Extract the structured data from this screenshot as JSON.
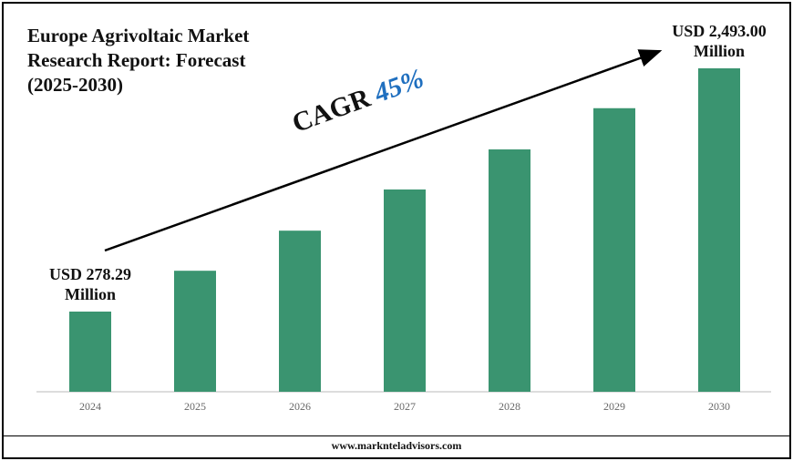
{
  "title": "Europe Agrivoltaic Market Research Report: Forecast (2025-2030)",
  "chart_data": {
    "type": "bar",
    "categories": [
      "2024",
      "2025",
      "2026",
      "2027",
      "2028",
      "2029",
      "2030"
    ],
    "values": [
      278.29,
      650,
      1015,
      1390,
      1755,
      2130,
      2493.0
    ],
    "value_labels": [
      "USD 278.29 Million",
      null,
      null,
      null,
      null,
      null,
      "USD 2,493.00 Million"
    ],
    "color": "#3a9470"
  },
  "annotation": {
    "label": "CAGR",
    "value": "45%"
  },
  "footer": "www.marknteladvisors.com"
}
